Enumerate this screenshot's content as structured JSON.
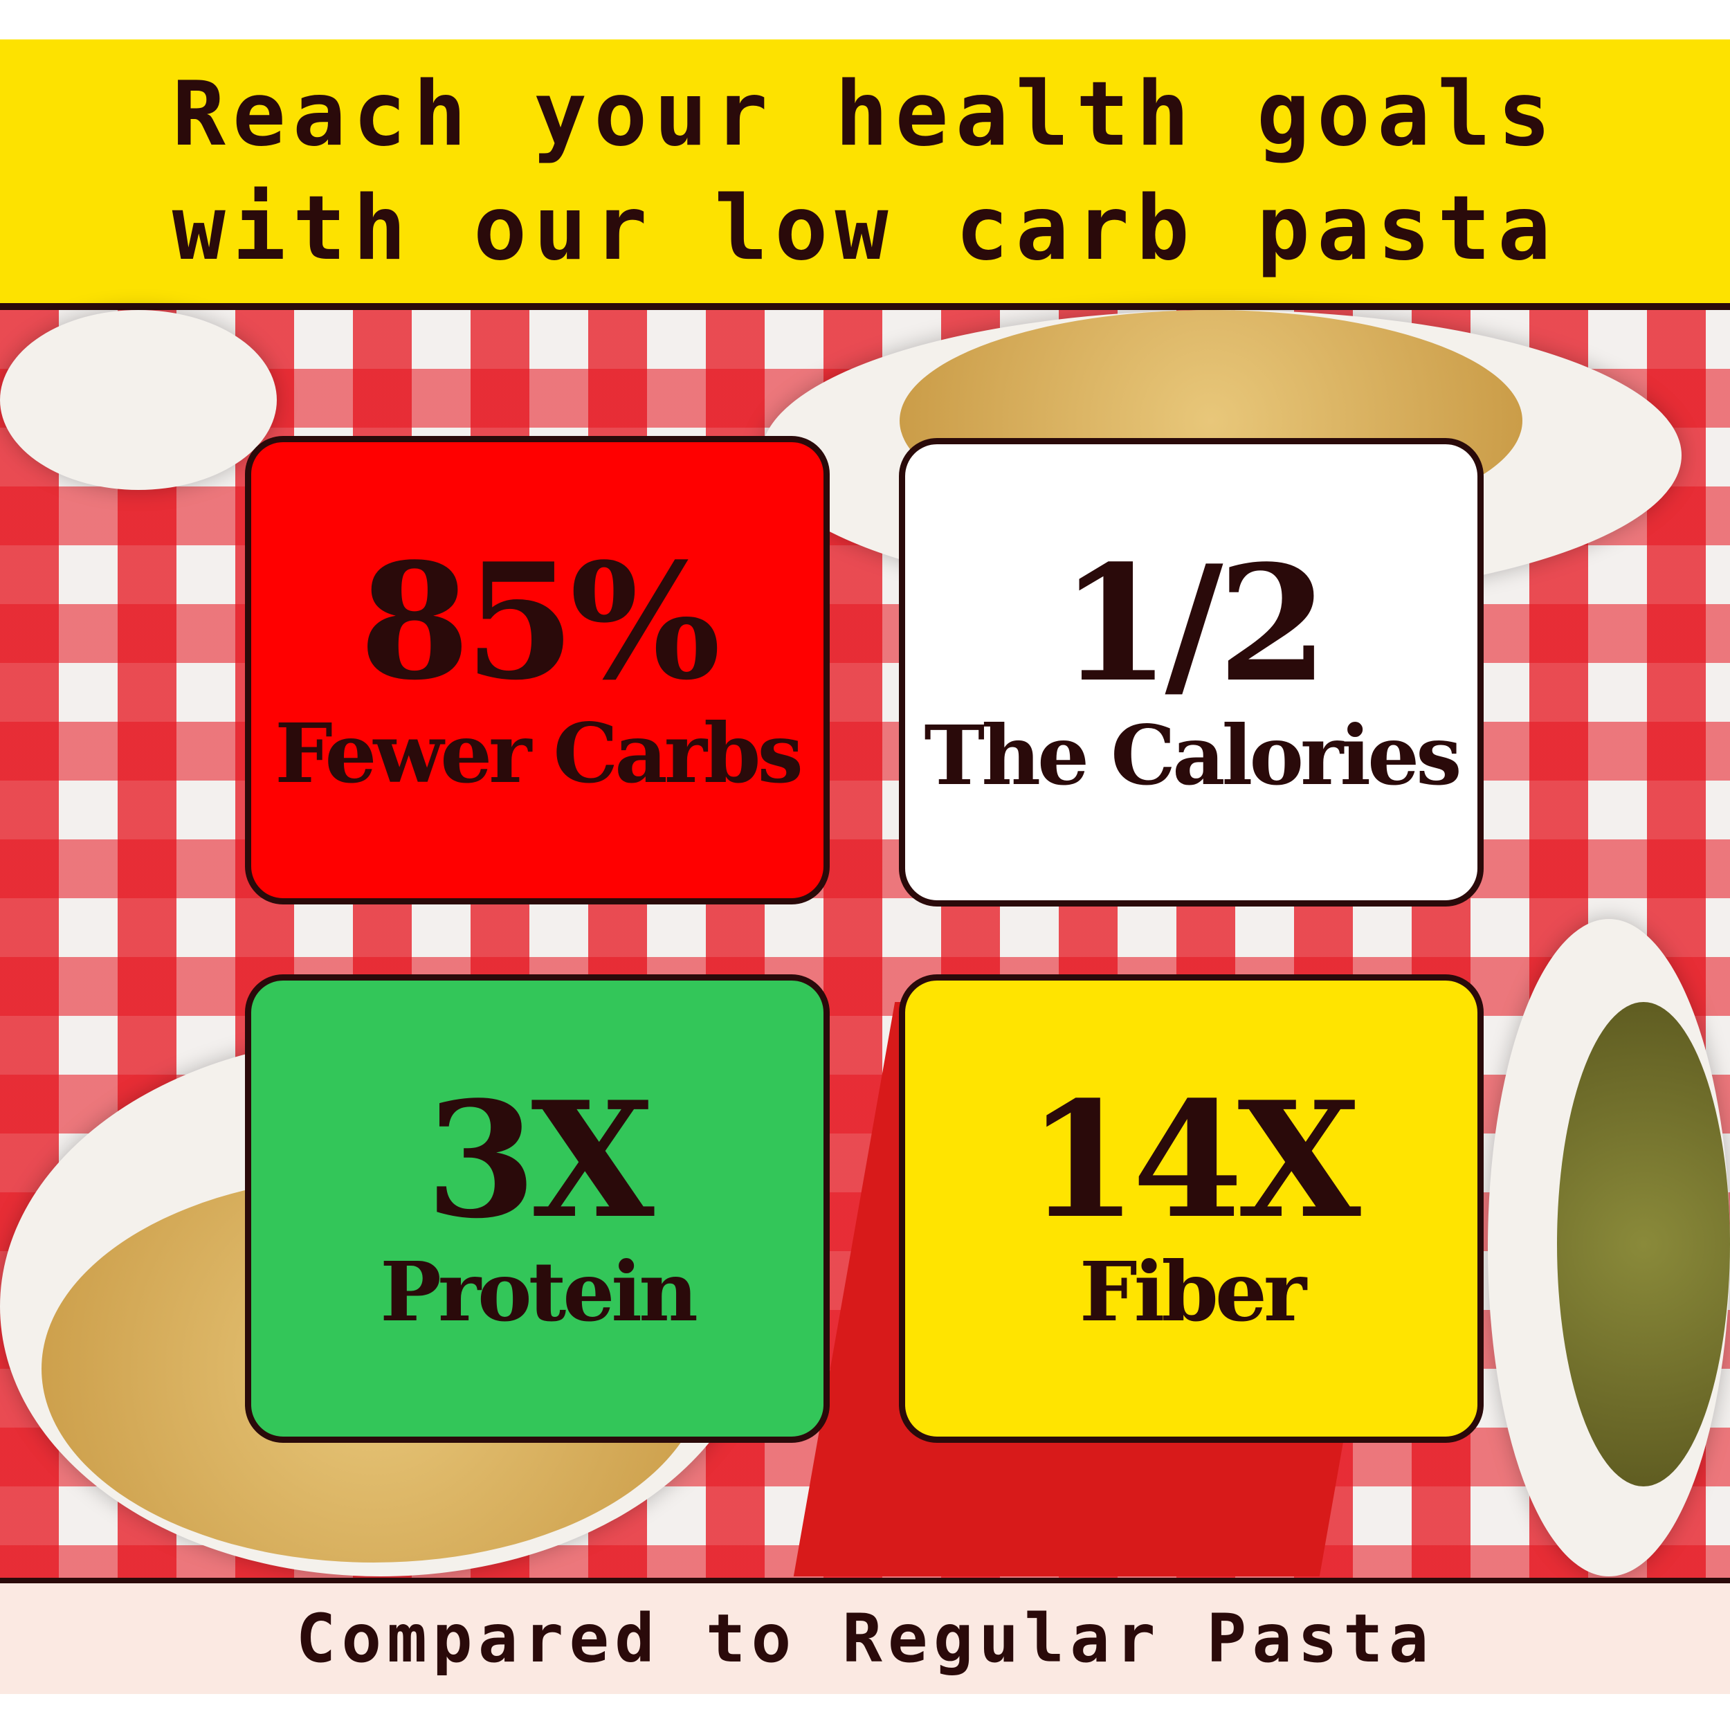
{
  "header": {
    "line1": "Reach your health goals",
    "line2": "with our low carb pasta"
  },
  "cards": [
    {
      "value": "85%",
      "label": "Fewer Carbs",
      "color": "#ff0000"
    },
    {
      "value": "1/2",
      "label": "The Calories",
      "color": "#ffffff"
    },
    {
      "value": "3X",
      "label": "Protein",
      "color": "#33c659"
    },
    {
      "value": "14X",
      "label": "Fiber",
      "color": "#ffe400"
    }
  ],
  "footer": {
    "text": "Compared to Regular Pasta"
  }
}
